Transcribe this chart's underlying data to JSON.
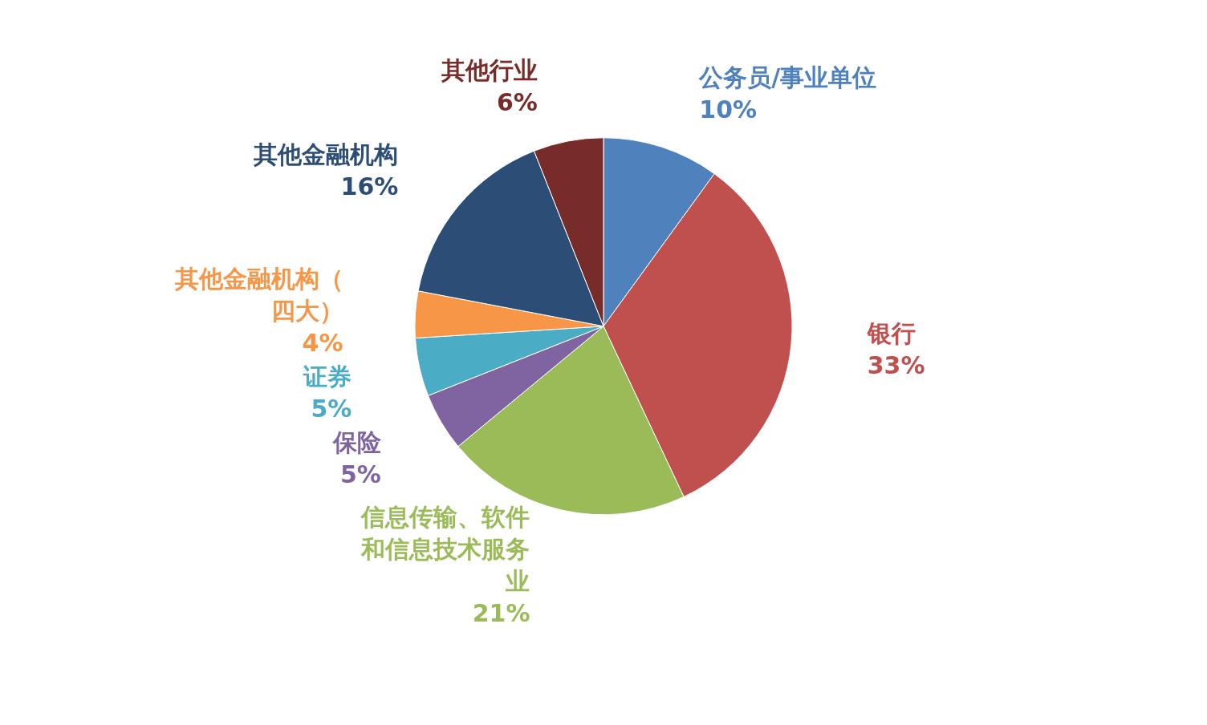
{
  "chart_data": {
    "type": "pie",
    "categories": [
      "公务员/事业单位",
      "银行",
      "信息传输、软件和信息技术服务业",
      "保险",
      "证券",
      "其他金融机构（四大）",
      "其他金融机构",
      "其他行业"
    ],
    "values": [
      10,
      33,
      21,
      5,
      5,
      4,
      16,
      6
    ],
    "value_labels": [
      "10%",
      "33%",
      "21%",
      "5%",
      "5%",
      "4%",
      "16%",
      "6%"
    ],
    "colors": [
      "#4f81bd",
      "#c0504d",
      "#9bbb59",
      "#8064a2",
      "#4bacc6",
      "#f79646",
      "#2c4d75",
      "#772c2a"
    ],
    "legend": false
  }
}
